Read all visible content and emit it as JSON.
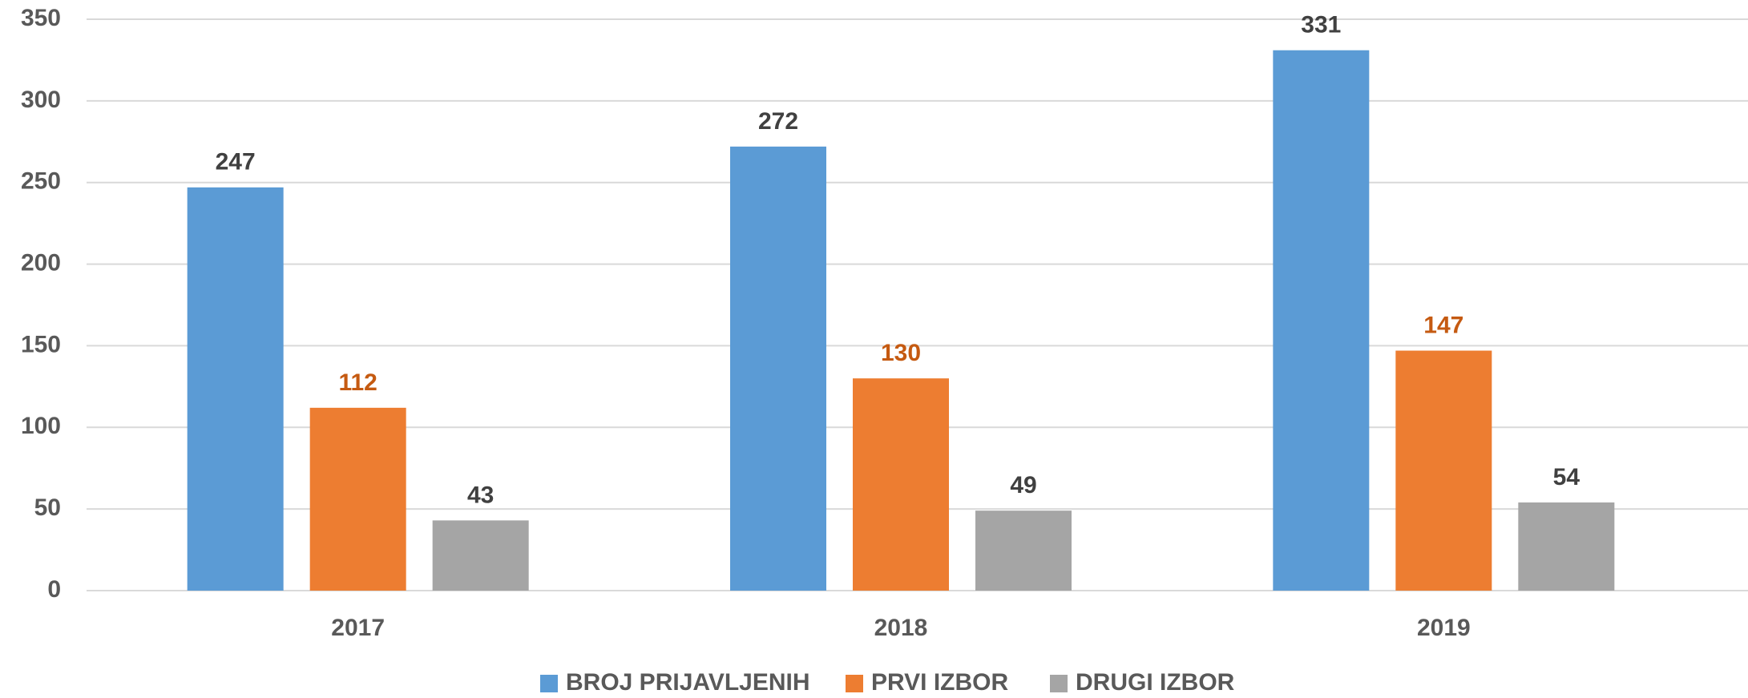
{
  "chart_data": {
    "type": "bar",
    "categories": [
      "2017",
      "2018",
      "2019"
    ],
    "series": [
      {
        "name": "BROJ PRIJAVLJENIH",
        "color": "#5b9bd5",
        "label_color": "#404040",
        "values": [
          247,
          272,
          331
        ]
      },
      {
        "name": "PRVI IZBOR",
        "color": "#ed7d31",
        "label_color": "#c55a11",
        "values": [
          112,
          130,
          147
        ]
      },
      {
        "name": "DRUGI IZBOR",
        "color": "#a5a5a5",
        "label_color": "#404040",
        "values": [
          43,
          49,
          54
        ]
      }
    ],
    "ylim": [
      0,
      350
    ],
    "yticks": [
      0,
      50,
      100,
      150,
      200,
      250,
      300,
      350
    ],
    "grid": true,
    "legend": "bottom"
  }
}
